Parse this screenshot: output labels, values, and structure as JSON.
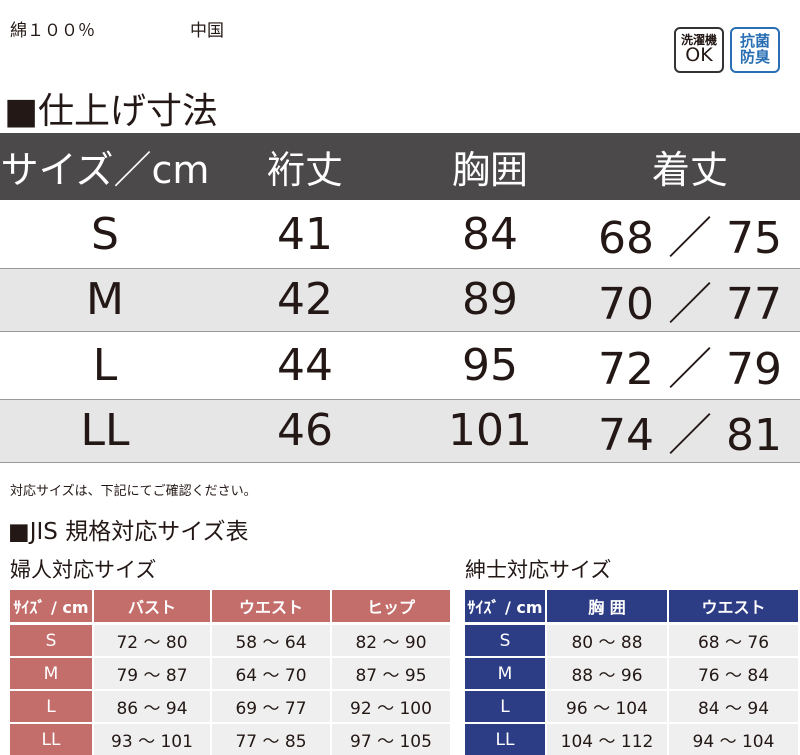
{
  "header": {
    "material": "綿１００％",
    "origin": "中国",
    "badges": [
      {
        "line1": "洗濯機",
        "line2": "OK"
      },
      {
        "line1": "抗菌",
        "line2": "防臭"
      }
    ]
  },
  "finished": {
    "title": "■仕上げ寸法",
    "columns": [
      "サイズ／cm",
      "裄丈",
      "胸囲",
      "着丈"
    ],
    "rows": [
      [
        "S",
        "41",
        "84",
        "68 ／ 75"
      ],
      [
        "M",
        "42",
        "89",
        "70 ／ 77"
      ],
      [
        "L",
        "44",
        "95",
        "72 ／ 79"
      ],
      [
        "LL",
        "46",
        "101",
        "74 ／ 81"
      ]
    ]
  },
  "note": "対応サイズは、下記にてご確認ください。",
  "jis": {
    "title": "■JIS 規格対応サイズ表",
    "women": {
      "title": "婦人対応サイズ",
      "columns": [
        "ｻｲｽﾞ / cm",
        "バスト",
        "ウエスト",
        "ヒップ"
      ],
      "rows": [
        [
          "S",
          "72 ～ 80",
          "58 ～ 64",
          "82 ～ 90"
        ],
        [
          "M",
          "79 ～ 87",
          "64 ～ 70",
          "87 ～ 95"
        ],
        [
          "L",
          "86 ～ 94",
          "69 ～ 77",
          "92 ～ 100"
        ],
        [
          "LL",
          "93 ～ 101",
          "77 ～ 85",
          "97 ～ 105"
        ]
      ]
    },
    "men": {
      "title": "紳士対応サイズ",
      "columns": [
        "ｻｲｽﾞ / cm",
        "胸 囲",
        "ウエスト"
      ],
      "rows": [
        [
          "S",
          "80 ～ 88",
          "68 ～ 76"
        ],
        [
          "M",
          "88 ～ 96",
          "76 ～ 84"
        ],
        [
          "L",
          "96 ～ 104",
          "84 ～ 94"
        ],
        [
          "LL",
          "104 ～ 112",
          "94 ～ 104"
        ]
      ]
    }
  }
}
